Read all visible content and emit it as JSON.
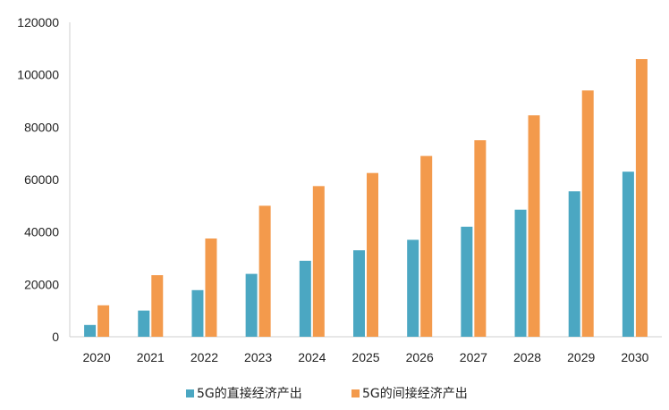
{
  "chart_data": {
    "type": "bar",
    "categories": [
      "2020",
      "2021",
      "2022",
      "2023",
      "2024",
      "2025",
      "2026",
      "2027",
      "2028",
      "2029",
      "2030"
    ],
    "series": [
      {
        "name": "5G的直接经济产出",
        "color": "#4ba7c2",
        "values": [
          4500,
          10000,
          17800,
          24000,
          29000,
          33000,
          37000,
          42000,
          48500,
          55500,
          63000
        ]
      },
      {
        "name": "5G的间接经济产出",
        "color": "#f39a4c",
        "values": [
          12000,
          23500,
          37500,
          50000,
          57500,
          62500,
          69000,
          75000,
          84500,
          94000,
          106000
        ]
      }
    ],
    "yticks": [
      "0",
      "20000",
      "40000",
      "60000",
      "80000",
      "100000",
      "120000"
    ],
    "ylim": [
      0,
      120000
    ],
    "grid": false,
    "legend_position": "bottom"
  }
}
